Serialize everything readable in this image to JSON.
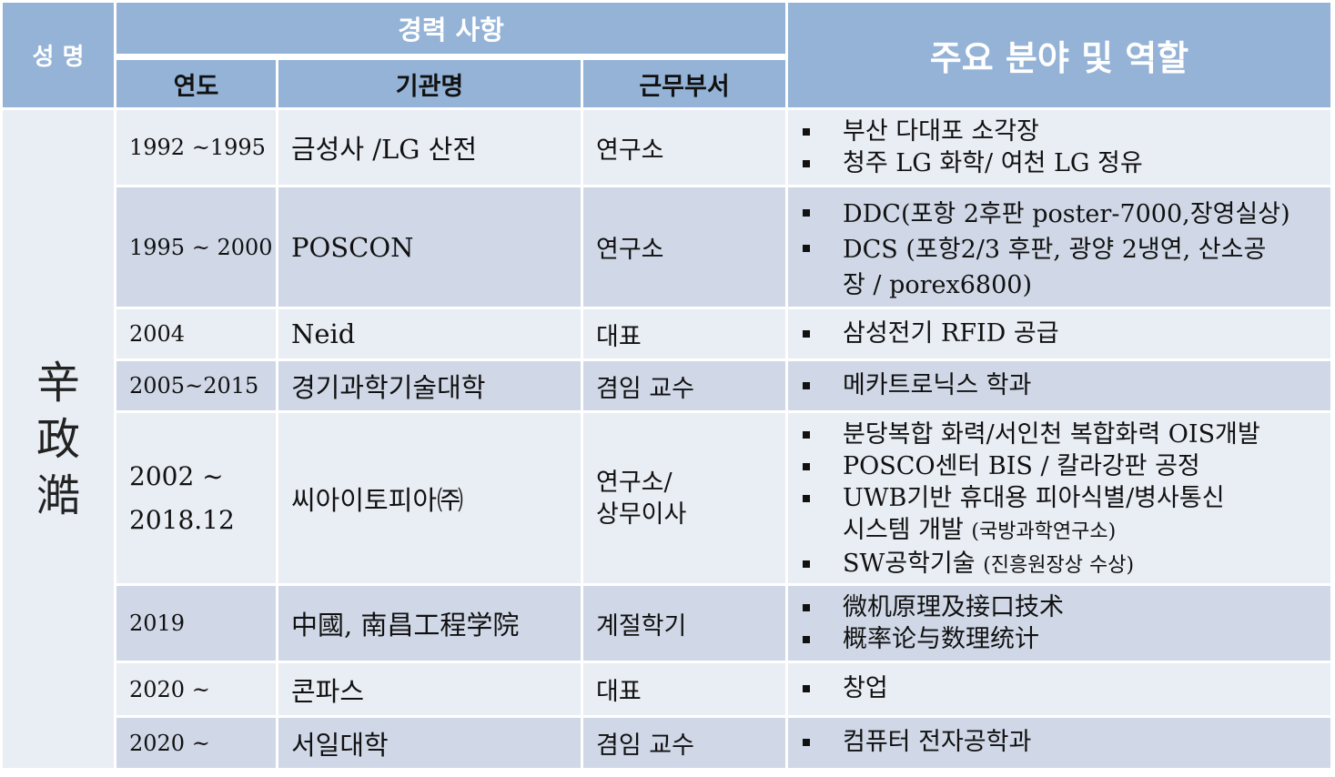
{
  "header": {
    "name_col": "성 명",
    "career_group": "경력 사항",
    "roles_col": "주요 분야 및 역할",
    "year_col": "연도",
    "org_col": "기관명",
    "dept_col": "근무부서"
  },
  "person": {
    "name_chars": [
      "辛",
      "政",
      "澔"
    ]
  },
  "rows": [
    {
      "year": "1992 ~1995",
      "org": "금성사 /LG 산전",
      "dept": "연구소",
      "roles": [
        "부산 다대포 소각장",
        "청주 LG 화학/ 여천 LG 정유"
      ]
    },
    {
      "year": "1995 ~ 2000",
      "org": "POSCON",
      "dept": "연구소",
      "roles": [
        "DDC(포항 2후판 poster-7000,장영실상)",
        "DCS (포항2/3 후판, 광양 2냉연, 산소공",
        "장 / porex6800)"
      ]
    },
    {
      "year": "2004",
      "org": "Neid",
      "dept": "대표",
      "roles": [
        "삼성전기 RFID 공급"
      ]
    },
    {
      "year": "2005~2015",
      "org": "경기과학기술대학",
      "dept": "겸임 교수",
      "roles": [
        "메카트로닉스 학과"
      ]
    },
    {
      "year_line1": "2002 ~",
      "year_line2": "2018.12",
      "org": "씨아이토피아㈜",
      "dept_line1": "연구소/",
      "dept_line2": "상무이사",
      "roles": [
        "분당복합 화력/서인천 복합화력 OIS개발",
        "POSCO센터 BIS / 칼라강판 공정",
        "UWB기반 휴대용 피아식별/병사통신",
        "시스템 개발 ",
        "(국방과학연구소)",
        "SW공학기술 ",
        "(진흥원장상 수상)"
      ]
    },
    {
      "year": "2019",
      "org": "中國, 南昌工程学院",
      "dept": "계절학기",
      "roles": [
        "微机原理及接口技术",
        "概率论与数理统计"
      ]
    },
    {
      "year": "2020 ~",
      "org": "콘파스",
      "dept": "대표",
      "roles": [
        "창업"
      ]
    },
    {
      "year": "2020 ~",
      "org": "서일대학",
      "dept": "겸임 교수",
      "roles": [
        "컴퓨터 전자공학과"
      ]
    }
  ],
  "colors": {
    "header_bg": "#94b3d7",
    "row_light": "#e9edf4",
    "row_dark": "#d0d8e7"
  }
}
